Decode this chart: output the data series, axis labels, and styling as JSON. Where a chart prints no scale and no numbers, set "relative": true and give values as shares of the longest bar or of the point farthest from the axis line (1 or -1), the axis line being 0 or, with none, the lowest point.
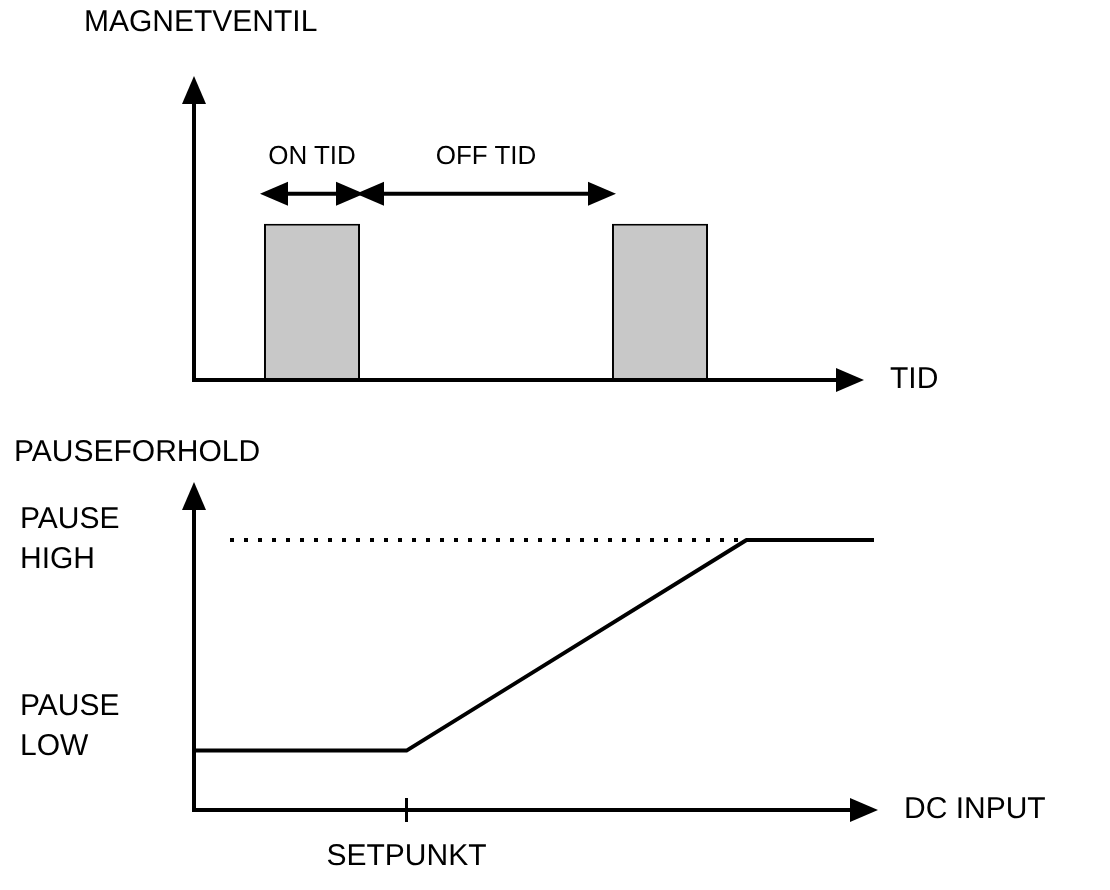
{
  "chart_data": [
    {
      "type": "bar",
      "ylabel": "MAGNETVENTIL",
      "xlabel": "TID",
      "relative": true,
      "categories": [
        null,
        null
      ],
      "values": [
        1,
        1
      ],
      "color": "#c8c8c8",
      "annotations": [
        "ON TID",
        "OFF TID"
      ]
    },
    {
      "type": "line",
      "ylabel": "PAUSEFORHOLD",
      "xlabel": "DC INPUT",
      "relative": true,
      "categories": [
        null,
        null,
        null,
        null,
        null,
        null,
        null,
        null,
        null,
        null,
        null,
        null,
        null,
        null,
        null,
        null,
        null
      ],
      "series": [
        {
          "color": "#000000",
          "values": [
            0.22,
            null,
            null,
            null,
            null,
            0.22,
            null,
            null,
            null,
            null,
            null,
            null,
            null,
            1,
            null,
            null,
            1
          ]
        }
      ],
      "ref_lines": [
        {
          "axis": "y",
          "value": 1,
          "label": "PAUSE HIGH",
          "line_style": "dotted"
        }
      ],
      "annotations": [
        "PAUSE LOW",
        "SETPUNKT"
      ]
    }
  ]
}
